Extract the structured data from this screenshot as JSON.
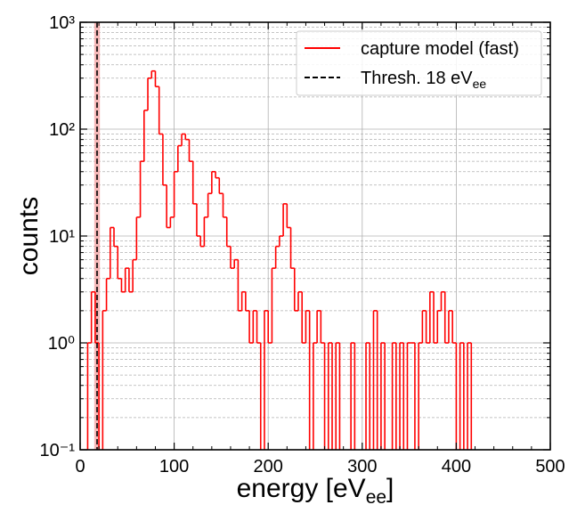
{
  "chart_data": {
    "type": "histogram",
    "xlabel": [
      "energy [eV",
      "ee",
      "]"
    ],
    "ylabel": "counts",
    "xlim": [
      0,
      500
    ],
    "ylim": [
      0.1,
      1000
    ],
    "log_y": true,
    "grid": true,
    "legend": "upper right",
    "xticks": [
      0,
      100,
      200,
      300,
      400,
      500
    ],
    "xminorticks": [
      20,
      40,
      60,
      80,
      120,
      140,
      160,
      180,
      220,
      240,
      260,
      280,
      320,
      340,
      360,
      380,
      420,
      440,
      460,
      480
    ],
    "yticks": [
      {
        "value": 0.1,
        "label": "10⁻¹"
      },
      {
        "value": 1,
        "label": "10⁰"
      },
      {
        "value": 10,
        "label": "10¹"
      },
      {
        "value": 100,
        "label": "10²"
      },
      {
        "value": 1000,
        "label": "10³"
      }
    ],
    "yminorticks": [
      0.2,
      0.3,
      0.4,
      0.5,
      0.6,
      0.7,
      0.8,
      0.9,
      2,
      3,
      4,
      5,
      6,
      7,
      8,
      9,
      20,
      30,
      40,
      50,
      60,
      70,
      80,
      90,
      200,
      300,
      400,
      500,
      600,
      700,
      800,
      900
    ],
    "bins": [
      0,
      4,
      8,
      12,
      16,
      20,
      24,
      28,
      32,
      36,
      40,
      44,
      48,
      52,
      56,
      60,
      64,
      68,
      72,
      76,
      80,
      84,
      88,
      92,
      96,
      100,
      104,
      108,
      112,
      116,
      120,
      124,
      128,
      132,
      136,
      140,
      144,
      148,
      152,
      156,
      160,
      164,
      168,
      172,
      176,
      180,
      184,
      188,
      192,
      196,
      200,
      204,
      208,
      212,
      216,
      220,
      224,
      228,
      232,
      236,
      240,
      244,
      248,
      252,
      256,
      260,
      264,
      268,
      272,
      276,
      280,
      284,
      288,
      292,
      296,
      300,
      304,
      308,
      312,
      316,
      320,
      324,
      328,
      332,
      336,
      340,
      344,
      348,
      352,
      356,
      360,
      364,
      368,
      372,
      376,
      380,
      384,
      388,
      392,
      396,
      400,
      404,
      408,
      412,
      416,
      420
    ],
    "series": [
      {
        "name": "capture model (fast)",
        "color": "#ff0000",
        "values": [
          0,
          0,
          1,
          3,
          1,
          0,
          2,
          4,
          12,
          8,
          4,
          3,
          5,
          3,
          6,
          15,
          50,
          150,
          300,
          350,
          250,
          90,
          30,
          12,
          15,
          40,
          70,
          90,
          80,
          50,
          20,
          10,
          8,
          15,
          25,
          40,
          35,
          25,
          15,
          8,
          5,
          6,
          2,
          3,
          2,
          1,
          2,
          1,
          0,
          2,
          1,
          5,
          8,
          10,
          20,
          12,
          5,
          2,
          3,
          1,
          2,
          0,
          1,
          2,
          1,
          0,
          1,
          0,
          1,
          0,
          0,
          0,
          1,
          0,
          0,
          0,
          1,
          0,
          2,
          0,
          1,
          0,
          0,
          1,
          0,
          1,
          0,
          1,
          1,
          0,
          1,
          2,
          1,
          3,
          1,
          2,
          3,
          1,
          2,
          1,
          0,
          1,
          0,
          1,
          0
        ]
      }
    ],
    "threshold": {
      "name": [
        "Thresh. 18 eV",
        "ee"
      ],
      "value": 18,
      "band": [
        15,
        21
      ],
      "color": "#000000",
      "band_color": "#f4a6a6"
    }
  }
}
